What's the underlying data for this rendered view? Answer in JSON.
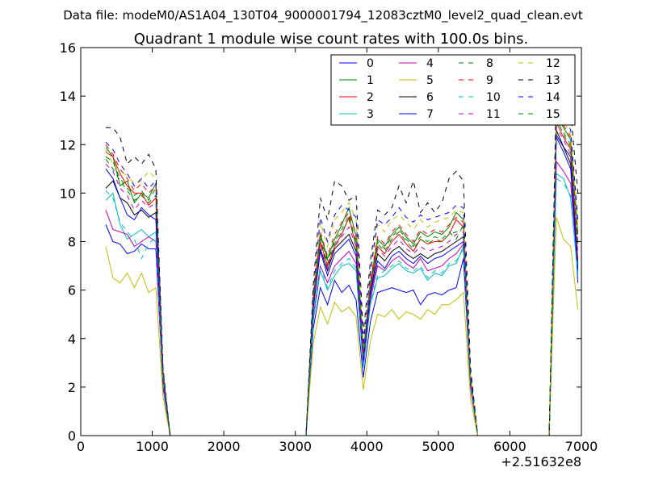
{
  "suptitle": "Data file: modeM0/AS1A04_130T04_9000001794_12083cztM0_level2_quad_clean.evt",
  "chart_data": {
    "type": "line",
    "title": "Quadrant 1 module wise count rates with 100.0s bins.",
    "xlabel": "",
    "ylabel": "",
    "xlim": [
      0,
      7000
    ],
    "ylim": [
      0,
      16
    ],
    "x_offset_label": "+2.51632e8",
    "xticks": [
      0,
      1000,
      2000,
      3000,
      4000,
      5000,
      6000,
      7000
    ],
    "xtick_labels": [
      "0",
      "1000",
      "2000",
      "3000",
      "4000",
      "5000",
      "6000",
      "7000"
    ],
    "yticks": [
      0,
      2,
      4,
      6,
      8,
      10,
      12,
      14,
      16
    ],
    "ytick_labels": [
      "0",
      "2",
      "4",
      "6",
      "8",
      "10",
      "12",
      "14",
      "16"
    ],
    "grid": false,
    "legend_position": "top-right",
    "legend_columns": 4,
    "x": [
      350,
      450,
      550,
      650,
      750,
      850,
      950,
      1050,
      1150,
      1250,
      1350,
      1450,
      1550,
      1650,
      1750,
      1850,
      1950,
      2050,
      2150,
      2250,
      2350,
      2450,
      2550,
      2650,
      2750,
      2850,
      2950,
      3050,
      3150,
      3250,
      3350,
      3450,
      3550,
      3650,
      3750,
      3850,
      3950,
      4050,
      4150,
      4250,
      4350,
      4450,
      4550,
      4650,
      4750,
      4850,
      4950,
      5050,
      5150,
      5250,
      5350,
      5450,
      5550,
      5650,
      5750,
      5850,
      5950,
      6050,
      6150,
      6250,
      6350,
      6450,
      6550,
      6650,
      6750,
      6850,
      6950
    ],
    "series": [
      {
        "name": "0",
        "color": "#0000ff",
        "style": "solid",
        "values": [
          8.7,
          8.0,
          7.9,
          7.5,
          7.6,
          7.9,
          7.7,
          7.7,
          2.0,
          0,
          0,
          0,
          0,
          0,
          0,
          0,
          0,
          0,
          0,
          0,
          0,
          0,
          0,
          0,
          0,
          0,
          0,
          0,
          0,
          4.4,
          6.1,
          5.4,
          6.4,
          5.9,
          6.2,
          5.6,
          2.4,
          4.7,
          5.9,
          6.0,
          6.1,
          6.0,
          5.9,
          6.0,
          5.4,
          5.8,
          5.9,
          5.8,
          6.0,
          6.1,
          7.3,
          2.0,
          0,
          0,
          0,
          0,
          0,
          0,
          0,
          0,
          0,
          0,
          0,
          12.4,
          11.9,
          11.5,
          6.3
        ]
      },
      {
        "name": "1",
        "color": "#008000",
        "style": "solid",
        "values": [
          11.9,
          11.5,
          10.3,
          10.5,
          9.6,
          10.0,
          9.8,
          10.4,
          2.6,
          0,
          0,
          0,
          0,
          0,
          0,
          0,
          0,
          0,
          0,
          0,
          0,
          0,
          0,
          0,
          0,
          0,
          0,
          0,
          0,
          5.6,
          8.3,
          7.3,
          8.1,
          8.7,
          9.4,
          8.2,
          3.4,
          6.3,
          8.1,
          7.8,
          8.3,
          8.6,
          8.2,
          7.9,
          8.4,
          8.2,
          8.4,
          8.3,
          8.6,
          9.2,
          8.9,
          2.4,
          0,
          0,
          0,
          0,
          0,
          0,
          0,
          0,
          0,
          0,
          0,
          13.2,
          12.7,
          12.2,
          8.3
        ]
      },
      {
        "name": "2",
        "color": "#ff0000",
        "style": "solid",
        "values": [
          11.7,
          11.5,
          10.8,
          10.3,
          10.0,
          10.0,
          9.5,
          9.8,
          2.5,
          0,
          0,
          0,
          0,
          0,
          0,
          0,
          0,
          0,
          0,
          0,
          0,
          0,
          0,
          0,
          0,
          0,
          0,
          0,
          0,
          5.4,
          8.0,
          7.0,
          7.8,
          8.3,
          9.0,
          7.8,
          3.3,
          6.1,
          7.8,
          7.5,
          8.0,
          8.3,
          7.9,
          7.6,
          8.1,
          7.9,
          8.0,
          8.0,
          8.3,
          8.9,
          8.6,
          2.3,
          0,
          0,
          0,
          0,
          0,
          0,
          0,
          0,
          0,
          0,
          0,
          12.9,
          12.3,
          11.8,
          7.2
        ]
      },
      {
        "name": "3",
        "color": "#00bfbf",
        "style": "solid",
        "values": [
          9.7,
          10.0,
          8.7,
          8.1,
          8.3,
          8.5,
          8.2,
          8.4,
          2.2,
          0,
          0,
          0,
          0,
          0,
          0,
          0,
          0,
          0,
          0,
          0,
          0,
          0,
          0,
          0,
          0,
          0,
          0,
          0,
          0,
          4.7,
          6.8,
          6.0,
          6.6,
          7.0,
          7.1,
          6.8,
          2.8,
          5.4,
          6.5,
          6.6,
          6.9,
          7.1,
          6.8,
          6.7,
          6.9,
          6.4,
          6.7,
          6.6,
          7.0,
          7.1,
          7.8,
          2.1,
          0,
          0,
          0,
          0,
          0,
          0,
          0,
          0,
          0,
          0,
          0,
          10.8,
          10.6,
          9.8,
          6.6
        ]
      },
      {
        "name": "4",
        "color": "#bf00bf",
        "style": "solid",
        "values": [
          9.3,
          8.5,
          8.4,
          8.3,
          7.8,
          8.0,
          8.2,
          8.0,
          2.1,
          0,
          0,
          0,
          0,
          0,
          0,
          0,
          0,
          0,
          0,
          0,
          0,
          0,
          0,
          0,
          0,
          0,
          0,
          0,
          0,
          4.9,
          7.0,
          6.3,
          7.0,
          7.3,
          7.6,
          7.1,
          2.9,
          5.6,
          7.0,
          6.8,
          7.2,
          7.4,
          7.1,
          6.9,
          7.3,
          6.8,
          6.9,
          7.0,
          7.3,
          7.5,
          7.9,
          2.1,
          0,
          0,
          0,
          0,
          0,
          0,
          0,
          0,
          0,
          0,
          0,
          11.3,
          10.9,
          10.4,
          6.9
        ]
      },
      {
        "name": "5",
        "color": "#bfbf00",
        "style": "solid",
        "values": [
          7.8,
          6.5,
          6.3,
          6.7,
          6.1,
          6.7,
          5.9,
          6.1,
          1.6,
          0,
          0,
          0,
          0,
          0,
          0,
          0,
          0,
          0,
          0,
          0,
          0,
          0,
          0,
          0,
          0,
          0,
          0,
          0,
          0,
          3.8,
          5.3,
          4.6,
          5.5,
          5.1,
          5.3,
          4.9,
          1.9,
          3.9,
          5.0,
          4.9,
          5.2,
          4.8,
          5.1,
          5.0,
          4.8,
          5.2,
          5.0,
          5.4,
          5.4,
          5.6,
          5.9,
          1.5,
          0,
          0,
          0,
          0,
          0,
          0,
          0,
          0,
          0,
          0,
          0,
          9.0,
          8.1,
          7.8,
          5.2
        ]
      },
      {
        "name": "6",
        "color": "#000000",
        "style": "solid",
        "values": [
          10.2,
          10.5,
          9.8,
          9.6,
          9.1,
          9.3,
          9.0,
          9.2,
          2.3,
          0,
          0,
          0,
          0,
          0,
          0,
          0,
          0,
          0,
          0,
          0,
          0,
          0,
          0,
          0,
          0,
          0,
          0,
          0,
          0,
          5.2,
          7.7,
          6.8,
          7.7,
          8.0,
          8.3,
          7.6,
          3.1,
          5.9,
          7.5,
          7.2,
          7.6,
          7.8,
          7.5,
          7.3,
          7.5,
          7.3,
          7.5,
          7.6,
          7.8,
          8.0,
          8.2,
          2.2,
          0,
          0,
          0,
          0,
          0,
          0,
          0,
          0,
          0,
          0,
          0,
          12.6,
          11.9,
          11.2,
          7.0
        ]
      },
      {
        "name": "7",
        "color": "#0000ff",
        "style": "solid",
        "values": [
          11.0,
          10.6,
          9.8,
          9.1,
          8.9,
          9.4,
          9.1,
          8.9,
          2.4,
          0,
          0,
          0,
          0,
          0,
          0,
          0,
          0,
          0,
          0,
          0,
          0,
          0,
          0,
          0,
          0,
          0,
          0,
          0,
          0,
          5.3,
          7.6,
          6.6,
          7.5,
          7.8,
          8.1,
          7.4,
          3.0,
          5.8,
          7.2,
          6.9,
          7.4,
          7.6,
          7.3,
          7.1,
          7.4,
          7.1,
          7.3,
          7.4,
          7.6,
          7.8,
          8.0,
          2.2,
          0,
          0,
          0,
          0,
          0,
          0,
          0,
          0,
          0,
          0,
          0,
          12.3,
          11.7,
          11.0,
          6.8
        ]
      },
      {
        "name": "8",
        "color": "#008000",
        "style": "dashed",
        "values": [
          11.5,
          11.3,
          10.6,
          10.2,
          9.9,
          10.1,
          9.7,
          10.2,
          2.5,
          0,
          0,
          0,
          0,
          0,
          0,
          0,
          0,
          0,
          0,
          0,
          0,
          0,
          0,
          0,
          0,
          0,
          0,
          0,
          0,
          5.5,
          8.2,
          7.2,
          8.0,
          8.5,
          9.1,
          8.0,
          3.3,
          6.2,
          8.0,
          7.7,
          8.2,
          8.5,
          8.1,
          7.8,
          8.2,
          8.0,
          8.2,
          8.1,
          8.4,
          8.1,
          8.7,
          2.3,
          0,
          0,
          0,
          0,
          0,
          0,
          0,
          0,
          0,
          0,
          0,
          13.0,
          12.5,
          12.0,
          8.0
        ]
      },
      {
        "name": "9",
        "color": "#ff0000",
        "style": "dashed",
        "values": [
          12.0,
          11.6,
          11.0,
          10.6,
          10.1,
          10.4,
          10.0,
          10.3,
          2.6,
          0,
          0,
          0,
          0,
          0,
          0,
          0,
          0,
          0,
          0,
          0,
          0,
          0,
          0,
          0,
          0,
          0,
          0,
          0,
          0,
          5.7,
          8.4,
          7.4,
          8.3,
          8.8,
          9.2,
          8.3,
          3.4,
          6.4,
          8.2,
          7.9,
          8.4,
          8.7,
          8.3,
          8.0,
          8.5,
          8.3,
          8.5,
          8.4,
          8.7,
          9.0,
          8.8,
          2.4,
          0,
          0,
          0,
          0,
          0,
          0,
          0,
          0,
          0,
          0,
          0,
          13.4,
          12.8,
          12.3,
          8.4
        ]
      },
      {
        "name": "10",
        "color": "#00bfbf",
        "style": "dashed",
        "values": [
          10.1,
          9.8,
          8.8,
          8.4,
          8.1,
          7.3,
          7.9,
          8.2,
          2.2,
          0,
          0,
          0,
          0,
          0,
          0,
          0,
          0,
          0,
          0,
          0,
          0,
          0,
          0,
          0,
          0,
          0,
          0,
          0,
          0,
          4.8,
          7.0,
          6.1,
          6.8,
          7.1,
          7.3,
          6.9,
          2.8,
          5.5,
          6.6,
          6.8,
          7.0,
          7.2,
          6.9,
          6.8,
          7.0,
          6.5,
          6.8,
          6.7,
          7.1,
          7.2,
          7.7,
          2.1,
          0,
          0,
          0,
          0,
          0,
          0,
          0,
          0,
          0,
          0,
          0,
          10.6,
          10.4,
          9.9,
          6.7
        ]
      },
      {
        "name": "11",
        "color": "#bf00bf",
        "style": "dashed",
        "values": [
          11.2,
          10.9,
          10.2,
          9.9,
          9.3,
          9.7,
          9.4,
          9.6,
          2.4,
          0,
          0,
          0,
          0,
          0,
          0,
          0,
          0,
          0,
          0,
          0,
          0,
          0,
          0,
          0,
          0,
          0,
          0,
          0,
          0,
          5.4,
          7.9,
          6.9,
          7.8,
          8.2,
          8.6,
          7.8,
          3.2,
          6.0,
          7.7,
          7.4,
          7.8,
          8.1,
          7.7,
          7.5,
          7.8,
          7.6,
          7.7,
          7.8,
          8.0,
          8.3,
          8.4,
          2.2,
          0,
          0,
          0,
          0,
          0,
          0,
          0,
          0,
          0,
          0,
          0,
          12.7,
          12.2,
          11.6,
          7.5
        ]
      },
      {
        "name": "12",
        "color": "#bfbf00",
        "style": "dashed",
        "values": [
          11.8,
          11.2,
          10.9,
          10.7,
          10.4,
          10.5,
          10.9,
          10.6,
          2.6,
          0,
          0,
          0,
          0,
          0,
          0,
          0,
          0,
          0,
          0,
          0,
          0,
          0,
          0,
          0,
          0,
          0,
          0,
          0,
          0,
          5.8,
          8.8,
          7.8,
          8.9,
          9.2,
          9.6,
          8.9,
          3.6,
          6.6,
          8.7,
          8.4,
          8.9,
          9.1,
          8.8,
          8.5,
          8.9,
          8.6,
          8.8,
          8.9,
          9.0,
          9.3,
          9.2,
          2.5,
          0,
          0,
          0,
          0,
          0,
          0,
          0,
          0,
          0,
          0,
          0,
          13.6,
          13.0,
          12.4,
          8.6
        ]
      },
      {
        "name": "13",
        "color": "#000000",
        "style": "dashed",
        "values": [
          12.7,
          12.7,
          12.3,
          11.2,
          11.5,
          11.2,
          11.6,
          11.0,
          2.8,
          0,
          0,
          0,
          0,
          0,
          0,
          0,
          0,
          0,
          0,
          0,
          0,
          0,
          0,
          0,
          0,
          0,
          0,
          0,
          0,
          6.2,
          9.8,
          8.9,
          10.5,
          10.3,
          9.7,
          9.9,
          4.2,
          7.2,
          9.3,
          9.1,
          9.4,
          10.3,
          9.6,
          10.5,
          9.2,
          9.6,
          9.2,
          9.6,
          10.6,
          10.9,
          10.5,
          2.8,
          0,
          0,
          0,
          0,
          0,
          0,
          0,
          0,
          0,
          0,
          0,
          14.5,
          14.0,
          13.4,
          10.0
        ]
      },
      {
        "name": "14",
        "color": "#0000ff",
        "style": "dashed",
        "values": [
          12.1,
          11.8,
          11.2,
          10.8,
          10.3,
          10.6,
          10.2,
          10.5,
          2.7,
          0,
          0,
          0,
          0,
          0,
          0,
          0,
          0,
          0,
          0,
          0,
          0,
          0,
          0,
          0,
          0,
          0,
          0,
          0,
          0,
          5.9,
          9.0,
          8.0,
          9.1,
          9.5,
          9.3,
          9.0,
          3.7,
          6.8,
          8.9,
          8.7,
          9.0,
          9.4,
          9.0,
          8.8,
          9.1,
          8.9,
          9.0,
          9.1,
          9.2,
          9.5,
          9.4,
          2.6,
          0,
          0,
          0,
          0,
          0,
          0,
          0,
          0,
          0,
          0,
          0,
          13.8,
          13.2,
          12.6,
          8.9
        ]
      },
      {
        "name": "15",
        "color": "#008000",
        "style": "dashed",
        "values": [
          11.4,
          11.0,
          10.5,
          10.1,
          9.7,
          9.9,
          9.6,
          9.9,
          2.5,
          0,
          0,
          0,
          0,
          0,
          0,
          0,
          0,
          0,
          0,
          0,
          0,
          0,
          0,
          0,
          0,
          0,
          0,
          0,
          0,
          5.5,
          8.1,
          7.1,
          7.9,
          8.4,
          8.9,
          7.9,
          3.3,
          6.2,
          7.9,
          7.6,
          8.1,
          8.4,
          8.0,
          7.7,
          8.1,
          7.9,
          8.1,
          8.0,
          8.3,
          8.4,
          8.6,
          2.3,
          0,
          0,
          0,
          0,
          0,
          0,
          0,
          0,
          0,
          0,
          0,
          13.1,
          12.4,
          11.9,
          7.9
        ]
      }
    ]
  }
}
